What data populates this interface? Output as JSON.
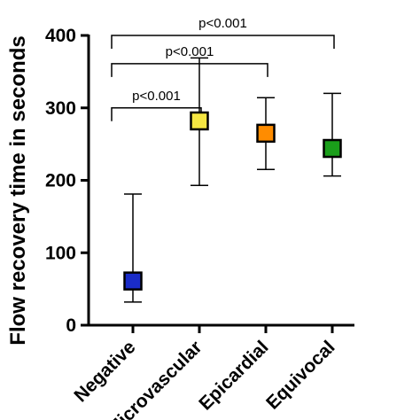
{
  "chart_data": {
    "type": "scatter",
    "ylabel": "Flow recovery time in seconds",
    "ylim": [
      0,
      400
    ],
    "yticks": [
      0,
      100,
      200,
      300,
      400
    ],
    "categories": [
      "Negative",
      "Microvascular",
      "Epicardial",
      "Equivocal"
    ],
    "points": [
      {
        "category": "Negative",
        "center": 61,
        "low": 32,
        "high": 181,
        "color": "#1a2cc8"
      },
      {
        "category": "Microvascular",
        "center": 282,
        "low": 193,
        "high": 369,
        "color": "#f5e642"
      },
      {
        "category": "Epicardial",
        "center": 265,
        "low": 215,
        "high": 314,
        "color": "#ff8c00"
      },
      {
        "category": "Equivocal",
        "center": 244,
        "low": 206,
        "high": 320,
        "color": "#1a9e1a"
      }
    ],
    "significance": [
      {
        "label": "p<0.001",
        "from": "Negative",
        "to": "Microvascular"
      },
      {
        "label": "p<0.001",
        "from": "Negative",
        "to": "Epicardial"
      },
      {
        "label": "p<0.001",
        "from": "Negative",
        "to": "Equivocal"
      }
    ]
  }
}
